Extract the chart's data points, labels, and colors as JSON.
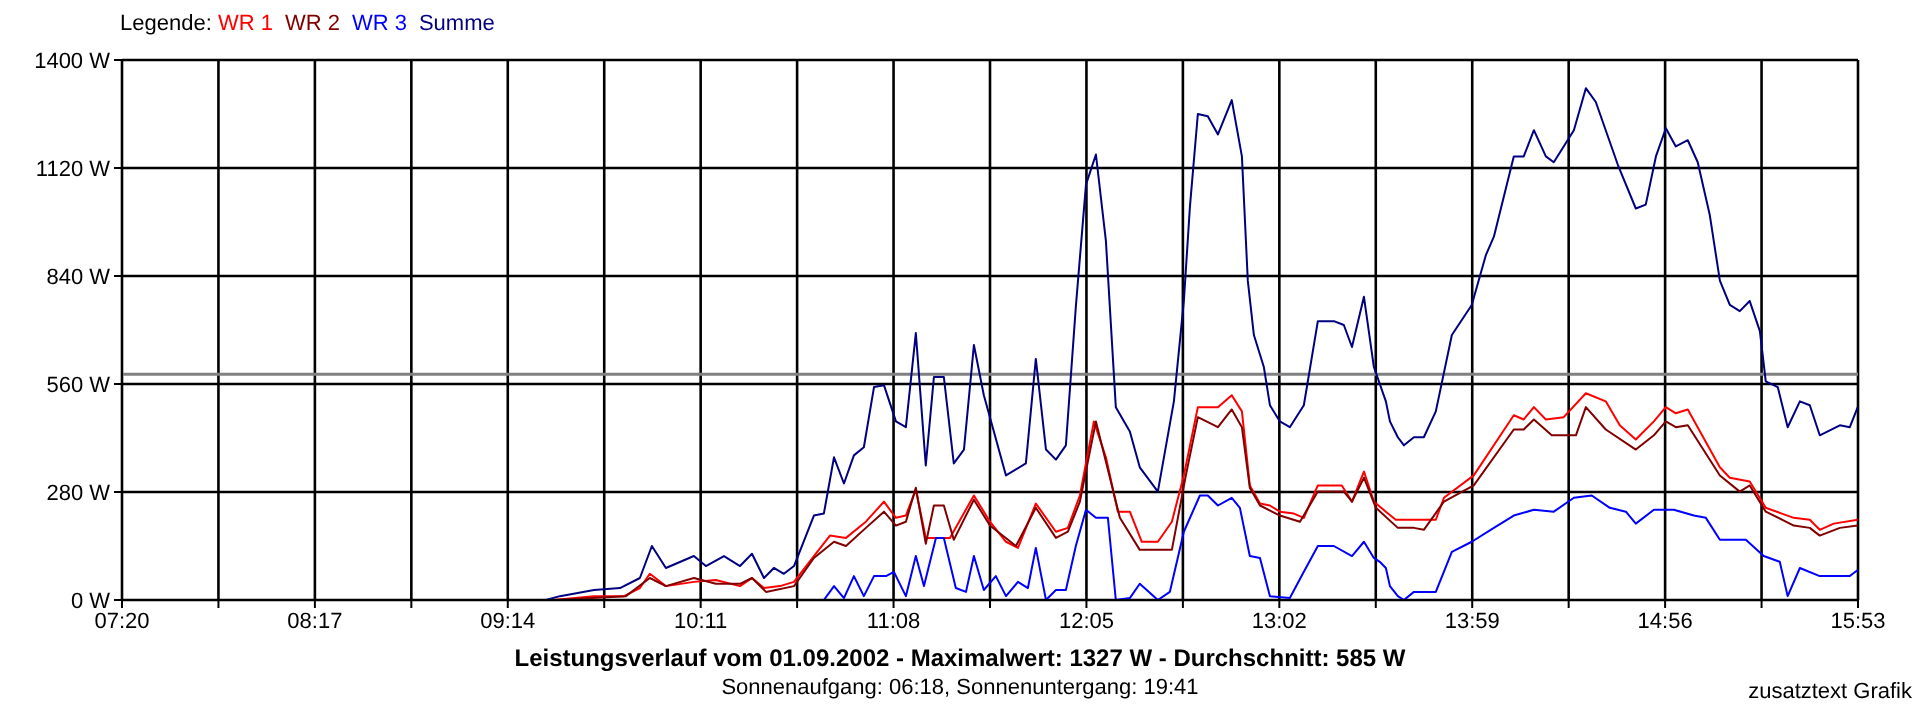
{
  "chart_data": {
    "type": "line",
    "title": "Leistungsverlauf vom 01.09.2002 - Maximalwert: 1327 W - Durchschnitt: 585 W",
    "subtitle": "Sonnenaufgang: 06:18, Sonnenuntergang: 19:41",
    "annotations": [
      "zusatztext Grafik"
    ],
    "legend_title": "Legende:",
    "legend": "top left",
    "grid": true,
    "marker": "none",
    "line_style": "solid",
    "xlim": [
      7.3333,
      15.8833
    ],
    "xticks": [
      {
        "value": 7.3333,
        "label": "07:20"
      },
      {
        "value": 7.8083,
        "label": null
      },
      {
        "value": 8.2833,
        "label": "08:17"
      },
      {
        "value": 8.7583,
        "label": null
      },
      {
        "value": 9.2333,
        "label": "09:14"
      },
      {
        "value": 9.7083,
        "label": null
      },
      {
        "value": 10.1833,
        "label": "10:11"
      },
      {
        "value": 10.6583,
        "label": null
      },
      {
        "value": 11.1333,
        "label": "11:08"
      },
      {
        "value": 11.6083,
        "label": null
      },
      {
        "value": 12.0833,
        "label": "12:05"
      },
      {
        "value": 12.5583,
        "label": null
      },
      {
        "value": 13.0333,
        "label": "13:02"
      },
      {
        "value": 13.5083,
        "label": null
      },
      {
        "value": 13.9833,
        "label": "13:59"
      },
      {
        "value": 14.4583,
        "label": null
      },
      {
        "value": 14.9333,
        "label": "14:56"
      },
      {
        "value": 15.4083,
        "label": null
      },
      {
        "value": 15.8833,
        "label": "15:53"
      }
    ],
    "ylim": [
      0,
      1400
    ],
    "yticks": [
      {
        "value": 0,
        "label": "0 W"
      },
      {
        "value": 280,
        "label": "280 W"
      },
      {
        "value": 560,
        "label": "560 W"
      },
      {
        "value": 840,
        "label": "840 W"
      },
      {
        "value": 1120,
        "label": "1120 W"
      },
      {
        "value": 1400,
        "label": "1400 W"
      }
    ],
    "ref_lines": [
      {
        "axis": "y",
        "value": 585,
        "color": "#808080"
      }
    ],
    "series": [
      {
        "name": "WR 1",
        "color": "#ff0000",
        "x": [
          8.948,
          9.461,
          9.658,
          9.806,
          9.884,
          9.933,
          10.012,
          10.15,
          10.258,
          10.377,
          10.436,
          10.495,
          10.574,
          10.643,
          10.741,
          10.82,
          10.899,
          10.997,
          11.086,
          11.145,
          11.194,
          11.243,
          11.292,
          11.411,
          11.529,
          11.608,
          11.687,
          11.746,
          11.834,
          11.933,
          11.992,
          12.051,
          12.12,
          12.179,
          12.238,
          12.297,
          12.356,
          12.435,
          12.504,
          12.563,
          12.632,
          12.731,
          12.799,
          12.849,
          12.888,
          12.938,
          12.987,
          13.036,
          13.105,
          13.154,
          13.223,
          13.341,
          13.391,
          13.45,
          13.499,
          13.558,
          13.607,
          13.804,
          13.844,
          13.991,
          14.188,
          14.237,
          14.287,
          14.346,
          14.434,
          14.543,
          14.641,
          14.71,
          14.789,
          14.878,
          14.937,
          14.986,
          15.045,
          15.203,
          15.252,
          15.35,
          15.429,
          15.567,
          15.646,
          15.695,
          15.764,
          15.882
        ],
        "values": [
          0,
          0,
          10,
          10,
          31,
          68,
          36,
          47,
          52,
          36,
          57,
          31,
          36,
          47,
          114,
          167,
          161,
          203,
          255,
          213,
          219,
          286,
          161,
          161,
          271,
          203,
          151,
          135,
          250,
          177,
          187,
          271,
          463,
          370,
          229,
          229,
          151,
          151,
          203,
          323,
          500,
          500,
          531,
          489,
          297,
          250,
          245,
          229,
          224,
          213,
          297,
          297,
          255,
          333,
          255,
          229,
          208,
          208,
          265,
          323,
          479,
          468,
          500,
          468,
          474,
          536,
          515,
          453,
          416,
          463,
          500,
          484,
          494,
          344,
          317,
          307,
          239,
          213,
          208,
          182,
          198,
          208
        ]
      },
      {
        "name": "WR 2",
        "color": "#800000",
        "x": [
          8.948,
          9.461,
          9.815,
          9.933,
          10.012,
          10.15,
          10.258,
          10.377,
          10.436,
          10.505,
          10.643,
          10.741,
          10.84,
          10.899,
          10.997,
          11.086,
          11.145,
          11.194,
          11.243,
          11.292,
          11.332,
          11.381,
          11.43,
          11.529,
          11.608,
          11.736,
          11.834,
          11.933,
          11.992,
          12.051,
          12.13,
          12.248,
          12.346,
          12.504,
          12.573,
          12.632,
          12.731,
          12.799,
          12.849,
          12.888,
          12.938,
          13.036,
          13.135,
          13.223,
          13.351,
          13.391,
          13.45,
          13.509,
          13.617,
          13.696,
          13.745,
          13.844,
          13.991,
          14.188,
          14.237,
          14.287,
          14.375,
          14.494,
          14.543,
          14.641,
          14.789,
          14.878,
          14.937,
          14.986,
          15.045,
          15.203,
          15.301,
          15.35,
          15.429,
          15.567,
          15.646,
          15.695,
          15.794,
          15.882
        ],
        "values": [
          0,
          0,
          10,
          57,
          36,
          57,
          42,
          42,
          57,
          21,
          36,
          109,
          151,
          140,
          187,
          229,
          193,
          203,
          291,
          146,
          245,
          245,
          156,
          260,
          193,
          140,
          239,
          161,
          177,
          255,
          463,
          213,
          130,
          130,
          323,
          474,
          448,
          494,
          448,
          291,
          245,
          219,
          203,
          281,
          281,
          255,
          317,
          239,
          187,
          187,
          182,
          255,
          297,
          442,
          442,
          468,
          427,
          427,
          500,
          442,
          390,
          427,
          463,
          448,
          453,
          323,
          281,
          297,
          229,
          193,
          187,
          167,
          187,
          193
        ]
      },
      {
        "name": "WR 3",
        "color": "#0000ff",
        "x": [
          8.948,
          10.79,
          10.84,
          10.889,
          10.938,
          10.987,
          11.037,
          11.096,
          11.135,
          11.194,
          11.243,
          11.283,
          11.342,
          11.381,
          11.44,
          11.49,
          11.529,
          11.578,
          11.637,
          11.687,
          11.746,
          11.795,
          11.834,
          11.884,
          11.933,
          11.982,
          12.031,
          12.081,
          12.13,
          12.189,
          12.228,
          12.297,
          12.346,
          12.435,
          12.494,
          12.563,
          12.642,
          12.681,
          12.731,
          12.799,
          12.839,
          12.888,
          12.938,
          12.987,
          13.085,
          13.154,
          13.223,
          13.302,
          13.391,
          13.45,
          13.499,
          13.528,
          13.558,
          13.578,
          13.617,
          13.647,
          13.696,
          13.804,
          13.883,
          13.981,
          14.09,
          14.188,
          14.287,
          14.385,
          14.484,
          14.572,
          14.661,
          14.74,
          14.789,
          14.878,
          14.976,
          15.075,
          15.134,
          15.203,
          15.331,
          15.419,
          15.498,
          15.537,
          15.597,
          15.695,
          15.843,
          15.882
        ],
        "values": [
          0,
          0,
          36,
          5,
          62,
          10,
          62,
          62,
          73,
          10,
          114,
          36,
          161,
          161,
          31,
          21,
          114,
          26,
          62,
          10,
          47,
          31,
          135,
          0,
          26,
          26,
          140,
          234,
          213,
          213,
          0,
          5,
          42,
          0,
          21,
          177,
          271,
          271,
          245,
          265,
          239,
          114,
          109,
          10,
          5,
          73,
          140,
          140,
          114,
          151,
          109,
          99,
          83,
          36,
          10,
          0,
          21,
          21,
          125,
          151,
          187,
          219,
          234,
          229,
          265,
          271,
          239,
          229,
          198,
          234,
          234,
          219,
          213,
          156,
          156,
          114,
          99,
          10,
          83,
          62,
          62,
          78
        ]
      },
      {
        "name": "Summe",
        "color": "#000080",
        "x": [
          8.948,
          9.421,
          9.49,
          9.658,
          9.786,
          9.884,
          9.943,
          10.012,
          10.15,
          10.209,
          10.298,
          10.377,
          10.436,
          10.495,
          10.544,
          10.593,
          10.643,
          10.741,
          10.79,
          10.84,
          10.889,
          10.938,
          10.987,
          11.037,
          11.086,
          11.145,
          11.194,
          11.243,
          11.292,
          11.332,
          11.381,
          11.43,
          11.48,
          11.529,
          11.578,
          11.687,
          11.785,
          11.834,
          11.884,
          11.933,
          11.982,
          12.031,
          12.081,
          12.13,
          12.179,
          12.228,
          12.297,
          12.346,
          12.435,
          12.514,
          12.563,
          12.593,
          12.632,
          12.681,
          12.731,
          12.799,
          12.849,
          12.878,
          12.908,
          12.957,
          12.987,
          13.036,
          13.085,
          13.154,
          13.223,
          13.302,
          13.351,
          13.391,
          13.45,
          13.499,
          13.558,
          13.578,
          13.617,
          13.647,
          13.696,
          13.745,
          13.804,
          13.883,
          13.981,
          14.051,
          14.09,
          14.188,
          14.237,
          14.287,
          14.346,
          14.385,
          14.484,
          14.543,
          14.592,
          14.7,
          14.789,
          14.838,
          14.888,
          14.937,
          14.986,
          15.045,
          15.094,
          15.153,
          15.203,
          15.252,
          15.301,
          15.35,
          15.4,
          15.429,
          15.488,
          15.537,
          15.597,
          15.646,
          15.695,
          15.794,
          15.843,
          15.882
        ],
        "values": [
          0,
          0,
          10,
          26,
          31,
          57,
          140,
          83,
          114,
          88,
          114,
          88,
          120,
          57,
          83,
          68,
          88,
          219,
          224,
          370,
          302,
          375,
          396,
          552,
          557,
          463,
          448,
          692,
          349,
          578,
          578,
          354,
          390,
          661,
          531,
          323,
          354,
          625,
          390,
          364,
          401,
          760,
          1077,
          1155,
          932,
          500,
          437,
          344,
          281,
          515,
          775,
          1020,
          1260,
          1254,
          1207,
          1296,
          1150,
          828,
          687,
          604,
          505,
          463,
          448,
          505,
          723,
          723,
          713,
          656,
          786,
          604,
          515,
          463,
          422,
          401,
          422,
          422,
          489,
          687,
          765,
          895,
          942,
          1150,
          1150,
          1218,
          1150,
          1135,
          1218,
          1327,
          1291,
          1129,
          1015,
          1025,
          1150,
          1223,
          1176,
          1192,
          1135,
          999,
          828,
          765,
          749,
          775,
          697,
          567,
          552,
          448,
          515,
          505,
          427,
          453,
          448,
          500
        ]
      }
    ]
  }
}
